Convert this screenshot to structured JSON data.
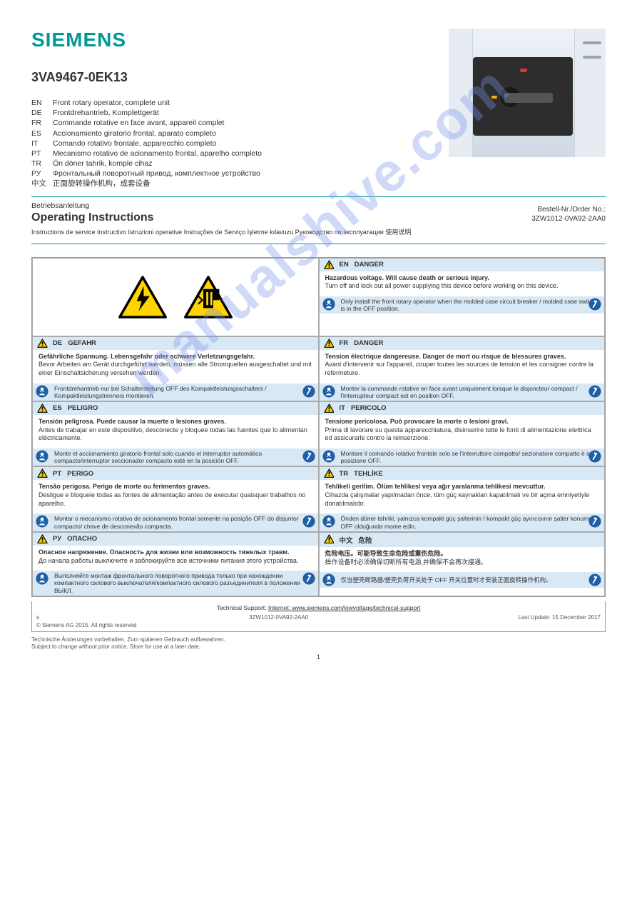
{
  "brand": "SIEMENS",
  "model": "3VA9467-0EK13",
  "descriptions": [
    {
      "lang": "EN",
      "text": "Front rotary operator, complete unit"
    },
    {
      "lang": "DE",
      "text": "Frontdrehantrieb, Komplettgerät"
    },
    {
      "lang": "FR",
      "text": "Commande rotative en face avant, appareil complet"
    },
    {
      "lang": "ES",
      "text": "Accionamiento giratorio frontal, aparato completo"
    },
    {
      "lang": "IT",
      "text": "Comando rotativo frontale, apparecchio completo"
    },
    {
      "lang": "PT",
      "text": "Mecanismo rotativo de acionamento frontal, aparelho completo"
    },
    {
      "lang": "TR",
      "text": "Ön döner tahrik, komple cihaz"
    },
    {
      "lang": "РУ",
      "text": "Фронтальный поворотный привод, комплектное устройство"
    },
    {
      "lang": "中文",
      "text": "正面旋转操作机构，成套设备"
    }
  ],
  "titlebar": {
    "line1": "Betriebsanleitung",
    "line2": "Operating Instructions",
    "others": "Instructions de service    Instructivo    Istruzioni operative    Instruções de Serviço    İşletme kılavuzu    Руководство по эксплуатации    使用说明",
    "docno_label": "Bestell-Nr./Order No.:",
    "docno": "3ZW1012-0VA92-2AA0"
  },
  "watermark": "manualshive.com",
  "warnings": [
    {
      "lang": "EN",
      "word": "DANGER",
      "line1": "Hazardous voltage. Will cause death or serious injury.",
      "line2": "Turn off and lock out all power supplying this device before working on this device.",
      "foot": "Only install the front rotary operator when the molded case circuit breaker / molded case switch is in the OFF position."
    },
    {
      "lang": "DE",
      "word": "GEFAHR",
      "line1": "Gefährliche Spannung. Lebensgefahr oder schwere Verletzungsgefahr.",
      "line2": "Bevor Arbeiten am Gerät durchgeführt werden, müssen alle Stromquellen ausgeschaltet und mit einer Einschaltsicherung versehen werden.",
      "foot": "Frontdrehantrieb nur bei Schalterstellung OFF des Kompaktleistungsschalters / Kompaktleistungstrenners montieren."
    },
    {
      "lang": "FR",
      "word": "DANGER",
      "line1": "Tension électrique dangereuse. Danger de mort ou risque de blessures graves.",
      "line2": "Avant d'intervenir sur l'appareil, couper toutes les sources de tension et les consigner contre la refermeture.",
      "foot": "Monter la commande rotative en face avant uniquement lorsque le disjoncteur compact / l'interrupteur compact est en position OFF."
    },
    {
      "lang": "ES",
      "word": "PELIGRO",
      "line1": "Tensión peligrosa. Puede causar la muerte o lesiones graves.",
      "line2": "Antes de trabajar en este dispositivo, desconecte y bloquee todas las fuentes que lo alimentan eléctricamente.",
      "foot": "Monte el accionamiento giratorio frontal solo cuando el interruptor automático compacto/interruptor seccionador compacto esté en la posición OFF."
    },
    {
      "lang": "IT",
      "word": "PERICOLO",
      "line1": "Tensione pericolosa. Può provocare la morte o lesioni gravi.",
      "line2": "Prima di lavorare su questa apparecchiatura, disinserire tutte le fonti di alimentazione elettrica ed assicurarle contro la reinserzione.",
      "foot": "Montare il comando rotativo frontale solo se l'interruttore compatto/ sezionatore compatto è in posizione OFF."
    },
    {
      "lang": "PT",
      "word": "PERIGO",
      "line1": "Tensão perigosa. Perigo de morte ou ferimentos graves.",
      "line2": "Desligue e bloqueie todas as fontes de alimentação antes de executar quaisquer trabalhos no aparelho.",
      "foot": "Montar o mecanismo rotativo de acionamento frontal somente na posição OFF do disjuntor compacto/ chave de desconexão compacta."
    },
    {
      "lang": "TR",
      "word": "TEHLİKE",
      "line1": "Tehlikeli gerilim. Ölüm tehlikesi veya ağır yaralanma tehlikesi mevcuttur.",
      "line2": "Cihazda çalışmalar yapılmadan önce, tüm güç kaynakları kapatılmalı ve bir açma emniyetiyle donatılmalıdır.",
      "foot": "Önden döner tahriki, yalnızca kompakt güç şalterinin / kompakt güç ayırıcısının şalter konumu OFF olduğunda monte edin."
    },
    {
      "lang": "РУ",
      "word": "ОПАСНО",
      "line1": "Опасное напряжение. Опасность для жизни или возможность тяжелых травм.",
      "line2": "До начала работы выключите и заблокируйте все источники питания этого устройства.",
      "foot": "Выполняйте монтаж фронтального поворотного привода только при нахождении компактного силового выключателя/компактного силового разъединителя в положении ВЫКЛ."
    },
    {
      "lang": "中文",
      "word": "危险",
      "line1": "危险电压。可能导致生命危险或重伤危险。",
      "line2": "操作设备时必须确保切断所有电源,并确保不会再次接通。",
      "foot": "仅当塑壳断路器/塑壳负荷开关处于 OFF 开关位置时才安装正面旋转操作机构。"
    }
  ],
  "footer": {
    "link_pre": "Technical Support:",
    "link": "Internet: www.siemens.com/lowvoltage/technical-support",
    "row2_left": "s",
    "row2_mid": "3ZW1012-0VA92-2AA0",
    "row2_right": "Last Update: 15 December 2017",
    "row3_left": "© Siemens AG 2015. All rights reserved",
    "row3_right": "",
    "update": "Technische Änderungen vorbehalten. Zum späteren Gebrauch aufbewahren.\nSubject to change without prior notice. Store for use at a later date.",
    "page": "1"
  },
  "colors": {
    "teal": "#009999",
    "headbg": "#d9e8f5",
    "blueicon": "#1f5fa6",
    "triangle_fill": "#ffd400",
    "triangle_stroke": "#000000"
  }
}
